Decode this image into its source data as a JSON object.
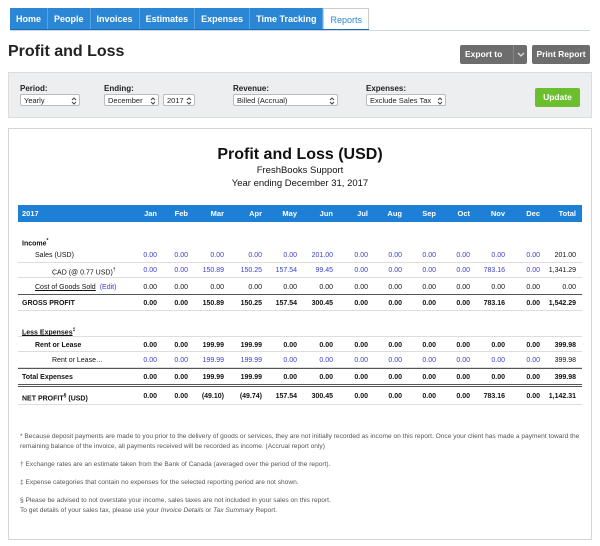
{
  "nav": {
    "tabs": [
      "Home",
      "People",
      "Invoices",
      "Estimates",
      "Expenses",
      "Time Tracking",
      "Reports"
    ]
  },
  "header": {
    "title": "Profit and Loss",
    "export_button": "Export to",
    "print_button": "Print Report"
  },
  "filters": {
    "period": {
      "label": "Period:",
      "value": "Yearly"
    },
    "ending": {
      "label": "Ending:",
      "month": "December",
      "year": "2017"
    },
    "revenue": {
      "label": "Revenue:",
      "value": "Billed (Accrual)"
    },
    "expenses": {
      "label": "Expenses:",
      "value": "Exclude Sales Tax"
    },
    "update_button": "Update"
  },
  "report": {
    "title": "Profit and Loss (USD)",
    "company": "FreshBooks Support",
    "period": "Year ending December 31, 2017",
    "table": {
      "columns": [
        "2017",
        "Jan",
        "Feb",
        "Mar",
        "Apr",
        "May",
        "Jun",
        "Jul",
        "Aug",
        "Sep",
        "Oct",
        "Nov",
        "Dec",
        "Total"
      ],
      "rows": [
        {
          "label": "Income",
          "mark": "*"
        },
        {
          "label": "Sales (USD)",
          "values": [
            "0.00",
            "0.00",
            "0.00",
            "0.00",
            "0.00",
            "201.00",
            "0.00",
            "0.00",
            "0.00",
            "0.00",
            "0.00",
            "0.00"
          ],
          "total": "201.00"
        },
        {
          "label": "CAD (@ 0.77 USD)",
          "mark": "†",
          "values": [
            "0.00",
            "0.00",
            "150.89",
            "150.25",
            "157.54",
            "99.45",
            "0.00",
            "0.00",
            "0.00",
            "0.00",
            "783.16",
            "0.00"
          ],
          "total": "1,341.29"
        },
        {
          "label": "Cost of Goods Sold",
          "link": "(Edit)",
          "values": [
            "0.00",
            "0.00",
            "0.00",
            "0.00",
            "0.00",
            "0.00",
            "0.00",
            "0.00",
            "0.00",
            "0.00",
            "0.00",
            "0.00"
          ],
          "total": "0.00"
        },
        {
          "label": "GROSS PROFIT",
          "values": [
            "0.00",
            "0.00",
            "150.89",
            "150.25",
            "157.54",
            "300.45",
            "0.00",
            "0.00",
            "0.00",
            "0.00",
            "783.16",
            "0.00"
          ],
          "total": "1,542.29"
        },
        {
          "label": "Less Expenses",
          "mark": "‡"
        },
        {
          "label": "Rent or Lease",
          "values": [
            "0.00",
            "0.00",
            "199.99",
            "199.99",
            "0.00",
            "0.00",
            "0.00",
            "0.00",
            "0.00",
            "0.00",
            "0.00",
            "0.00"
          ],
          "total": "399.98"
        },
        {
          "label": "Rent or Lease…",
          "values": [
            "0.00",
            "0.00",
            "199.99",
            "199.99",
            "0.00",
            "0.00",
            "0.00",
            "0.00",
            "0.00",
            "0.00",
            "0.00",
            "0.00"
          ],
          "total": "399.98"
        },
        {
          "label": "Total Expenses",
          "values": [
            "0.00",
            "0.00",
            "199.99",
            "199.99",
            "0.00",
            "0.00",
            "0.00",
            "0.00",
            "0.00",
            "0.00",
            "0.00",
            "0.00"
          ],
          "total": "399.98"
        },
        {
          "label": "NET PROFIT",
          "mark": "§",
          "suffix": "(USD)",
          "values": [
            "0.00",
            "0.00",
            "(49.10)",
            "(49.74)",
            "157.54",
            "300.45",
            "0.00",
            "0.00",
            "0.00",
            "0.00",
            "783.16",
            "0.00"
          ],
          "total": "1,142.31"
        }
      ]
    },
    "footnotes": [
      "* Because deposit payments are made to you prior to the delivery of goods or services, they are not initially recorded as income on this report. Once your client has made a payment toward the remaining balance of the invoice, all payments received will be recorded as income. (Accrual report only)",
      "† Exchange rates are an estimate taken from the Bank of Canada (averaged over the period of the report).",
      "‡ Expense categories that contain no expenses for the selected reporting period are not shown.",
      "§ Please be advised to not overstate your income, sales taxes are not included in your sales on this report."
    ],
    "sales_tax_note": [
      "To get details of your sales tax, please use your ",
      "Invoice Details",
      " or ",
      "Tax Summary",
      " Report."
    ]
  }
}
